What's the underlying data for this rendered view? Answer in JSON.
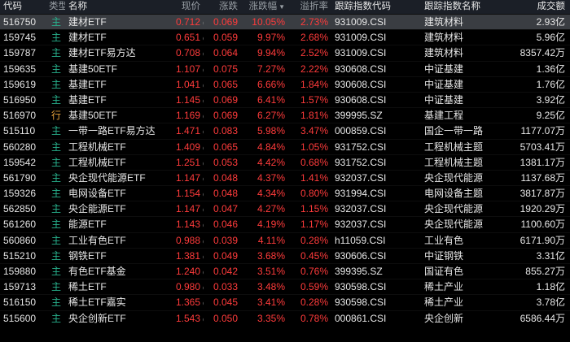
{
  "headers": {
    "code": "代码",
    "type": "类型",
    "name": "名称",
    "price": "现价",
    "change": "涨跌",
    "pct": "涨跌幅",
    "turnover": "溢折率",
    "index_code": "跟踪指数代码",
    "index_name": "跟踪指数名称",
    "volume": "成交额"
  },
  "sort_indicator": "▼",
  "price_suffix": "c",
  "rows": [
    {
      "code": "516750",
      "type": "主",
      "name": "建材ETF",
      "price": "0.712",
      "change": "0.069",
      "pct": "10.05%",
      "premium": "2.73%",
      "index_code": "931009.CSI",
      "index_name": "建筑材料",
      "volume": "2.93亿"
    },
    {
      "code": "159745",
      "type": "主",
      "name": "建材ETF",
      "price": "0.651",
      "change": "0.059",
      "pct": "9.97%",
      "premium": "2.68%",
      "index_code": "931009.CSI",
      "index_name": "建筑材料",
      "volume": "5.96亿"
    },
    {
      "code": "159787",
      "type": "主",
      "name": "建材ETF易方达",
      "price": "0.708",
      "change": "0.064",
      "pct": "9.94%",
      "premium": "2.52%",
      "index_code": "931009.CSI",
      "index_name": "建筑材料",
      "volume": "8357.42万"
    },
    {
      "code": "159635",
      "type": "主",
      "name": "基建50ETF",
      "price": "1.107",
      "change": "0.075",
      "pct": "7.27%",
      "premium": "2.22%",
      "index_code": "930608.CSI",
      "index_name": "中证基建",
      "volume": "1.36亿"
    },
    {
      "code": "159619",
      "type": "主",
      "name": "基建ETF",
      "price": "1.041",
      "change": "0.065",
      "pct": "6.66%",
      "premium": "1.84%",
      "index_code": "930608.CSI",
      "index_name": "中证基建",
      "volume": "1.76亿"
    },
    {
      "code": "516950",
      "type": "主",
      "name": "基建ETF",
      "price": "1.145",
      "change": "0.069",
      "pct": "6.41%",
      "premium": "1.57%",
      "index_code": "930608.CSI",
      "index_name": "中证基建",
      "volume": "3.92亿"
    },
    {
      "code": "516970",
      "type": "行",
      "name": "基建50ETF",
      "price": "1.169",
      "change": "0.069",
      "pct": "6.27%",
      "premium": "1.81%",
      "index_code": "399995.SZ",
      "index_name": "基建工程",
      "volume": "9.25亿"
    },
    {
      "code": "515110",
      "type": "主",
      "name": "一带一路ETF易方达",
      "price": "1.471",
      "change": "0.083",
      "pct": "5.98%",
      "premium": "3.47%",
      "index_code": "000859.CSI",
      "index_name": "国企一带一路",
      "volume": "1177.07万"
    },
    {
      "code": "560280",
      "type": "主",
      "name": "工程机械ETF",
      "price": "1.409",
      "change": "0.065",
      "pct": "4.84%",
      "premium": "1.05%",
      "index_code": "931752.CSI",
      "index_name": "工程机械主题",
      "volume": "5703.41万"
    },
    {
      "code": "159542",
      "type": "主",
      "name": "工程机械ETF",
      "price": "1.251",
      "change": "0.053",
      "pct": "4.42%",
      "premium": "0.68%",
      "index_code": "931752.CSI",
      "index_name": "工程机械主题",
      "volume": "1381.17万"
    },
    {
      "code": "561790",
      "type": "主",
      "name": "央企现代能源ETF",
      "price": "1.147",
      "change": "0.048",
      "pct": "4.37%",
      "premium": "1.41%",
      "index_code": "932037.CSI",
      "index_name": "央企现代能源",
      "volume": "1137.68万"
    },
    {
      "code": "159326",
      "type": "主",
      "name": "电网设备ETF",
      "price": "1.154",
      "change": "0.048",
      "pct": "4.34%",
      "premium": "0.80%",
      "index_code": "931994.CSI",
      "index_name": "电网设备主题",
      "volume": "3817.87万"
    },
    {
      "code": "562850",
      "type": "主",
      "name": "央企能源ETF",
      "price": "1.147",
      "change": "0.047",
      "pct": "4.27%",
      "premium": "1.15%",
      "index_code": "932037.CSI",
      "index_name": "央企现代能源",
      "volume": "1920.29万"
    },
    {
      "code": "561260",
      "type": "主",
      "name": "能源ETF",
      "price": "1.143",
      "change": "0.046",
      "pct": "4.19%",
      "premium": "1.17%",
      "index_code": "932037.CSI",
      "index_name": "央企现代能源",
      "volume": "1100.60万"
    },
    {
      "code": "560860",
      "type": "主",
      "name": "工业有色ETF",
      "price": "0.988",
      "change": "0.039",
      "pct": "4.11%",
      "premium": "0.28%",
      "index_code": "h11059.CSI",
      "index_name": "工业有色",
      "volume": "6171.90万"
    },
    {
      "code": "515210",
      "type": "主",
      "name": "钢铁ETF",
      "price": "1.381",
      "change": "0.049",
      "pct": "3.68%",
      "premium": "0.45%",
      "index_code": "930606.CSI",
      "index_name": "中证钢铁",
      "volume": "3.31亿"
    },
    {
      "code": "159880",
      "type": "主",
      "name": "有色ETF基金",
      "price": "1.240",
      "change": "0.042",
      "pct": "3.51%",
      "premium": "0.76%",
      "index_code": "399395.SZ",
      "index_name": "国证有色",
      "volume": "855.27万"
    },
    {
      "code": "159713",
      "type": "主",
      "name": "稀土ETF",
      "price": "0.980",
      "change": "0.033",
      "pct": "3.48%",
      "premium": "0.59%",
      "index_code": "930598.CSI",
      "index_name": "稀土产业",
      "volume": "1.18亿"
    },
    {
      "code": "516150",
      "type": "主",
      "name": "稀土ETF嘉实",
      "price": "1.365",
      "change": "0.045",
      "pct": "3.41%",
      "premium": "0.28%",
      "index_code": "930598.CSI",
      "index_name": "稀土产业",
      "volume": "3.78亿"
    },
    {
      "code": "515600",
      "type": "主",
      "name": "央企创新ETF",
      "price": "1.543",
      "change": "0.050",
      "pct": "3.35%",
      "premium": "0.78%",
      "index_code": "000861.CSI",
      "index_name": "央企创新",
      "volume": "6586.44万"
    }
  ],
  "colors": {
    "up": "#ff3b3b",
    "type_main": "#28b08c",
    "type_industry": "#e6a23c",
    "header_bg": "#1b1f27",
    "selected_bg": "#3a3d42"
  }
}
